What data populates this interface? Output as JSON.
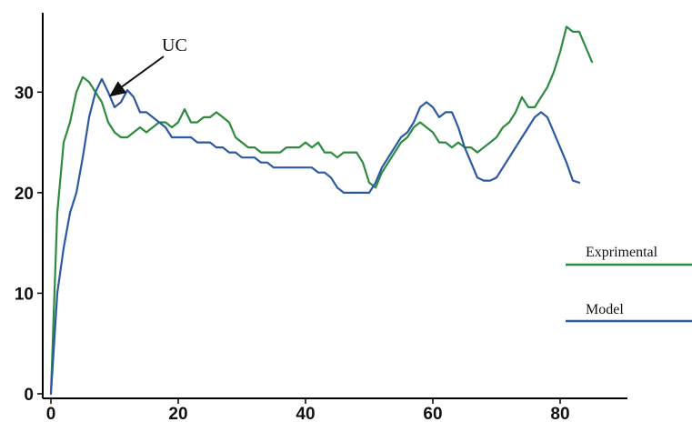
{
  "chart_data": {
    "type": "line",
    "title": "",
    "xlabel": "",
    "ylabel": "",
    "xlim": [
      0,
      85
    ],
    "ylim": [
      0,
      35
    ],
    "grid": false,
    "legend_position": "right",
    "x_ticks": [
      "0",
      "20",
      "40",
      "60",
      "80"
    ],
    "y_ticks": [
      "0",
      "10",
      "20",
      "30"
    ],
    "series": [
      {
        "name": "Exprimental",
        "color": "#2e8b3d",
        "points": [
          [
            0,
            0
          ],
          [
            1,
            18
          ],
          [
            2,
            25
          ],
          [
            3,
            27
          ],
          [
            4,
            30
          ],
          [
            5,
            31.5
          ],
          [
            6,
            31
          ],
          [
            7,
            30
          ],
          [
            8,
            29
          ],
          [
            9,
            27
          ],
          [
            10,
            26
          ],
          [
            11,
            25.5
          ],
          [
            12,
            25.5
          ],
          [
            13,
            26
          ],
          [
            14,
            26.5
          ],
          [
            15,
            26
          ],
          [
            16,
            26.5
          ],
          [
            17,
            27
          ],
          [
            18,
            27
          ],
          [
            19,
            26.5
          ],
          [
            20,
            27
          ],
          [
            21,
            28.3
          ],
          [
            22,
            27
          ],
          [
            23,
            27
          ],
          [
            24,
            27.5
          ],
          [
            25,
            27.5
          ],
          [
            26,
            28
          ],
          [
            27,
            27.5
          ],
          [
            28,
            27
          ],
          [
            29,
            25.5
          ],
          [
            30,
            25
          ],
          [
            31,
            24.5
          ],
          [
            32,
            24.5
          ],
          [
            33,
            24
          ],
          [
            34,
            24
          ],
          [
            35,
            24
          ],
          [
            36,
            24
          ],
          [
            37,
            24.5
          ],
          [
            38,
            24.5
          ],
          [
            39,
            24.5
          ],
          [
            40,
            25
          ],
          [
            41,
            24.5
          ],
          [
            42,
            25
          ],
          [
            43,
            24
          ],
          [
            44,
            24
          ],
          [
            45,
            23.5
          ],
          [
            46,
            24
          ],
          [
            47,
            24
          ],
          [
            48,
            24
          ],
          [
            49,
            23
          ],
          [
            50,
            21
          ],
          [
            51,
            20.5
          ],
          [
            52,
            22
          ],
          [
            53,
            23
          ],
          [
            54,
            24
          ],
          [
            55,
            25
          ],
          [
            56,
            25.5
          ],
          [
            57,
            26.5
          ],
          [
            58,
            27
          ],
          [
            59,
            26.5
          ],
          [
            60,
            26
          ],
          [
            61,
            25
          ],
          [
            62,
            25
          ],
          [
            63,
            24.5
          ],
          [
            64,
            25
          ],
          [
            65,
            24.5
          ],
          [
            66,
            24.5
          ],
          [
            67,
            24
          ],
          [
            68,
            24.5
          ],
          [
            69,
            25
          ],
          [
            70,
            25.5
          ],
          [
            71,
            26.5
          ],
          [
            72,
            27
          ],
          [
            73,
            28
          ],
          [
            74,
            29.5
          ],
          [
            75,
            28.5
          ],
          [
            76,
            28.5
          ],
          [
            77,
            29.5
          ],
          [
            78,
            30.5
          ],
          [
            79,
            32
          ],
          [
            80,
            34
          ],
          [
            81,
            36.5
          ],
          [
            82,
            36
          ],
          [
            83,
            36
          ],
          [
            84,
            34.5
          ],
          [
            85,
            33
          ]
        ]
      },
      {
        "name": "Model",
        "color": "#2c5aa0",
        "points": [
          [
            0,
            0
          ],
          [
            1,
            10
          ],
          [
            2,
            14.5
          ],
          [
            3,
            18
          ],
          [
            4,
            20
          ],
          [
            5,
            23.5
          ],
          [
            6,
            27.5
          ],
          [
            7,
            30
          ],
          [
            8,
            31.3
          ],
          [
            9,
            30
          ],
          [
            10,
            28.5
          ],
          [
            11,
            29
          ],
          [
            12,
            30.2
          ],
          [
            13,
            29.5
          ],
          [
            14,
            28
          ],
          [
            15,
            28
          ],
          [
            16,
            27.5
          ],
          [
            17,
            27
          ],
          [
            18,
            26.5
          ],
          [
            19,
            25.5
          ],
          [
            20,
            25.5
          ],
          [
            21,
            25.5
          ],
          [
            22,
            25.5
          ],
          [
            23,
            25
          ],
          [
            24,
            25
          ],
          [
            25,
            25
          ],
          [
            26,
            24.5
          ],
          [
            27,
            24.5
          ],
          [
            28,
            24
          ],
          [
            29,
            24
          ],
          [
            30,
            23.5
          ],
          [
            31,
            23.5
          ],
          [
            32,
            23.5
          ],
          [
            33,
            23
          ],
          [
            34,
            23
          ],
          [
            35,
            22.5
          ],
          [
            36,
            22.5
          ],
          [
            37,
            22.5
          ],
          [
            38,
            22.5
          ],
          [
            39,
            22.5
          ],
          [
            40,
            22.5
          ],
          [
            41,
            22.5
          ],
          [
            42,
            22
          ],
          [
            43,
            22
          ],
          [
            44,
            21.5
          ],
          [
            45,
            20.5
          ],
          [
            46,
            20
          ],
          [
            47,
            20
          ],
          [
            48,
            20
          ],
          [
            49,
            20
          ],
          [
            50,
            20
          ],
          [
            51,
            21
          ],
          [
            52,
            22.5
          ],
          [
            53,
            23.5
          ],
          [
            54,
            24.5
          ],
          [
            55,
            25.5
          ],
          [
            56,
            26
          ],
          [
            57,
            27
          ],
          [
            58,
            28.5
          ],
          [
            59,
            29
          ],
          [
            60,
            28.5
          ],
          [
            61,
            27.5
          ],
          [
            62,
            28
          ],
          [
            63,
            28
          ],
          [
            64,
            26.5
          ],
          [
            65,
            24.5
          ],
          [
            66,
            23
          ],
          [
            67,
            21.5
          ],
          [
            68,
            21.2
          ],
          [
            69,
            21.2
          ],
          [
            70,
            21.5
          ],
          [
            71,
            22.5
          ],
          [
            72,
            23.5
          ],
          [
            73,
            24.5
          ],
          [
            74,
            25.5
          ],
          [
            75,
            26.5
          ],
          [
            76,
            27.5
          ],
          [
            77,
            28
          ],
          [
            78,
            27.5
          ],
          [
            79,
            26
          ],
          [
            80,
            24.5
          ],
          [
            81,
            23
          ],
          [
            82,
            21.2
          ],
          [
            83,
            21
          ]
        ]
      }
    ],
    "annotations": [
      {
        "text": "UC",
        "arrow_target": [
          10,
          29
        ]
      }
    ]
  }
}
